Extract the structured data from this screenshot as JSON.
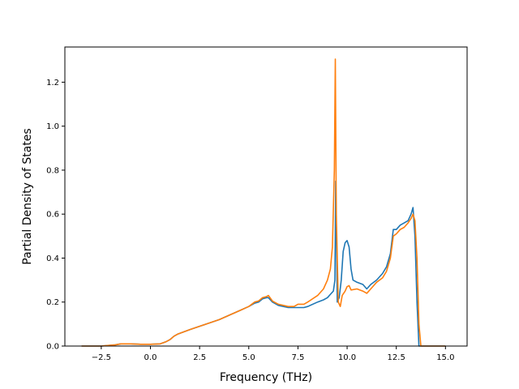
{
  "chart_data": {
    "type": "line",
    "title": "",
    "xlabel": "Frequency (THz)",
    "ylabel": "Partial Density of States",
    "xlim": [
      -4.35,
      16.1
    ],
    "ylim": [
      0.0,
      1.36
    ],
    "xticks": [
      -2.5,
      0.0,
      2.5,
      5.0,
      7.5,
      10.0,
      12.5,
      15.0
    ],
    "xtick_labels": [
      "−2.5",
      "0.0",
      "2.5",
      "5.0",
      "7.5",
      "10.0",
      "12.5",
      "15.0"
    ],
    "yticks": [
      0.0,
      0.2,
      0.4,
      0.6,
      0.8,
      1.0,
      1.2
    ],
    "ytick_labels": [
      "0.0",
      "0.2",
      "0.4",
      "0.6",
      "0.8",
      "1.0",
      "1.2"
    ],
    "grid": false,
    "legend": "none",
    "series": [
      {
        "color": "#1f77b4",
        "x": [
          -3.5,
          -2.5,
          -1.8,
          -1.5,
          -1.0,
          -0.5,
          0.0,
          0.5,
          0.8,
          1.0,
          1.2,
          1.4,
          2.0,
          2.5,
          3.0,
          3.5,
          4.0,
          4.5,
          5.0,
          5.3,
          5.5,
          5.7,
          5.9,
          6.0,
          6.2,
          6.5,
          7.0,
          7.3,
          7.5,
          7.8,
          8.0,
          8.5,
          8.8,
          9.0,
          9.2,
          9.3,
          9.38,
          9.42,
          9.5,
          9.6,
          9.7,
          9.8,
          9.9,
          10.0,
          10.1,
          10.2,
          10.3,
          10.5,
          10.8,
          11.0,
          11.2,
          11.5,
          11.8,
          12.0,
          12.2,
          12.35,
          12.5,
          12.7,
          12.9,
          13.1,
          13.25,
          13.35,
          13.45,
          13.55,
          13.65,
          13.75,
          14.0,
          14.5,
          15.0
        ],
        "y": [
          0.0,
          0.0,
          0.005,
          0.01,
          0.01,
          0.008,
          0.008,
          0.01,
          0.02,
          0.03,
          0.045,
          0.055,
          0.075,
          0.09,
          0.105,
          0.12,
          0.14,
          0.16,
          0.18,
          0.195,
          0.2,
          0.215,
          0.22,
          0.22,
          0.2,
          0.185,
          0.175,
          0.175,
          0.175,
          0.175,
          0.18,
          0.2,
          0.21,
          0.22,
          0.24,
          0.25,
          0.3,
          0.75,
          0.2,
          0.22,
          0.3,
          0.43,
          0.47,
          0.48,
          0.45,
          0.35,
          0.3,
          0.29,
          0.28,
          0.26,
          0.28,
          0.3,
          0.33,
          0.36,
          0.42,
          0.53,
          0.53,
          0.55,
          0.56,
          0.57,
          0.6,
          0.63,
          0.5,
          0.2,
          0.0,
          0.0,
          0.0,
          0.0,
          0.0
        ]
      },
      {
        "color": "#ff7f0e",
        "x": [
          -3.5,
          -2.5,
          -1.8,
          -1.5,
          -1.0,
          -0.5,
          0.0,
          0.5,
          0.8,
          1.0,
          1.2,
          1.4,
          2.0,
          2.5,
          3.0,
          3.5,
          4.0,
          4.5,
          5.0,
          5.3,
          5.5,
          5.7,
          5.9,
          6.0,
          6.2,
          6.5,
          7.0,
          7.3,
          7.5,
          7.8,
          8.0,
          8.5,
          8.8,
          9.0,
          9.15,
          9.25,
          9.35,
          9.4,
          9.45,
          9.55,
          9.65,
          9.75,
          9.9,
          10.0,
          10.1,
          10.2,
          10.5,
          10.8,
          11.0,
          11.2,
          11.5,
          11.8,
          12.0,
          12.2,
          12.35,
          12.5,
          12.7,
          12.9,
          13.1,
          13.25,
          13.35,
          13.45,
          13.55,
          13.65,
          13.75,
          14.0,
          14.5,
          15.0
        ],
        "y": [
          0.0,
          0.0,
          0.005,
          0.01,
          0.01,
          0.008,
          0.008,
          0.01,
          0.02,
          0.03,
          0.045,
          0.055,
          0.075,
          0.09,
          0.105,
          0.12,
          0.14,
          0.16,
          0.18,
          0.2,
          0.205,
          0.22,
          0.225,
          0.23,
          0.205,
          0.19,
          0.18,
          0.18,
          0.19,
          0.19,
          0.2,
          0.23,
          0.26,
          0.3,
          0.35,
          0.45,
          0.8,
          1.305,
          0.6,
          0.2,
          0.18,
          0.23,
          0.25,
          0.27,
          0.275,
          0.255,
          0.26,
          0.25,
          0.24,
          0.26,
          0.29,
          0.31,
          0.34,
          0.4,
          0.5,
          0.51,
          0.53,
          0.54,
          0.56,
          0.58,
          0.6,
          0.57,
          0.4,
          0.1,
          0.0,
          0.0,
          0.0,
          0.0
        ]
      }
    ]
  }
}
